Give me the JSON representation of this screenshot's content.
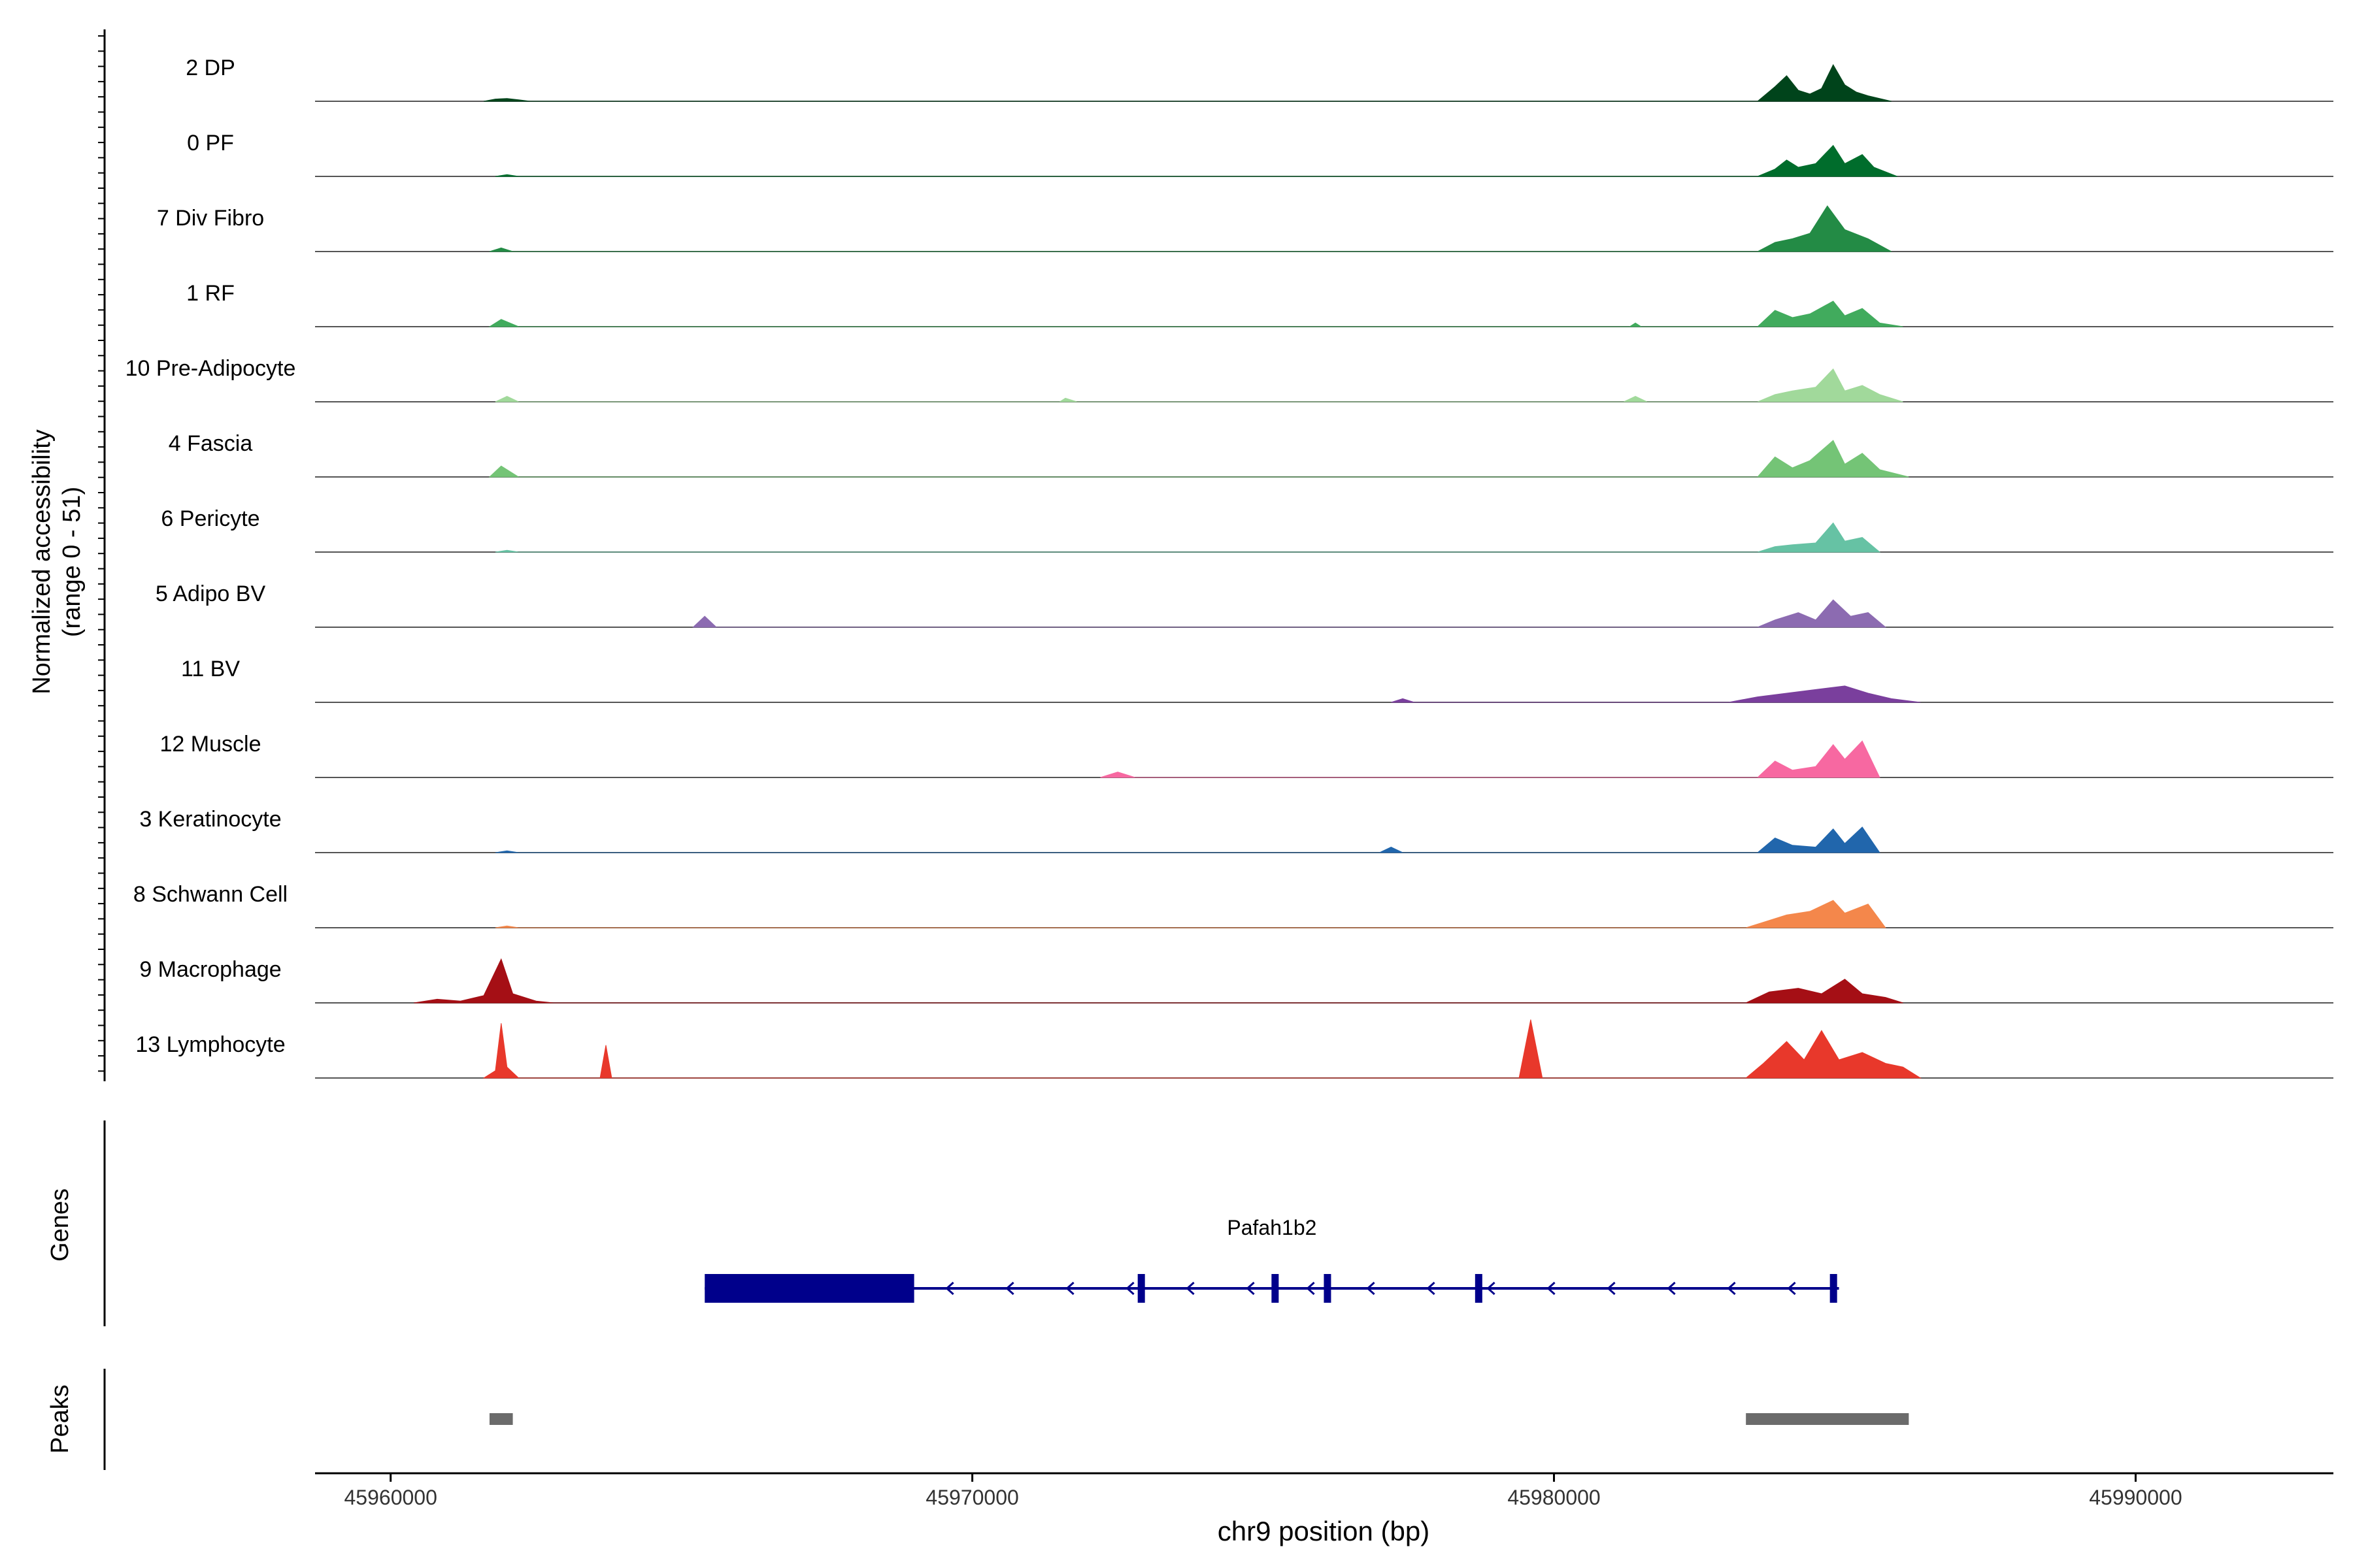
{
  "chart_data": {
    "type": "area",
    "title": "",
    "ylabel_line1": "Normalized accessibility",
    "ylabel_line2": "(range 0 - 51)",
    "xlabel": "chr9 position (bp)",
    "xlim": [
      45958700,
      45993400
    ],
    "ylim": [
      0,
      51
    ],
    "x_ticks": [
      45960000,
      45970000,
      45980000,
      45990000
    ],
    "x_tick_labels": [
      "45960000",
      "45970000",
      "45980000",
      "45990000"
    ],
    "series": [
      {
        "name": "2 DP",
        "color": "#00441b",
        "points": [
          [
            45961600,
            0
          ],
          [
            45961800,
            1.2
          ],
          [
            45962000,
            1.5
          ],
          [
            45962200,
            0.8
          ],
          [
            45962400,
            0
          ],
          [
            45983500,
            0
          ],
          [
            45983800,
            8
          ],
          [
            45984000,
            14
          ],
          [
            45984200,
            6
          ],
          [
            45984400,
            4
          ],
          [
            45984600,
            7
          ],
          [
            45984800,
            20
          ],
          [
            45985000,
            9
          ],
          [
            45985200,
            5
          ],
          [
            45985400,
            3
          ],
          [
            45985800,
            0
          ]
        ]
      },
      {
        "name": "0 PF",
        "color": "#006d2c",
        "points": [
          [
            45961800,
            0
          ],
          [
            45962000,
            1
          ],
          [
            45962200,
            0
          ],
          [
            45983500,
            0
          ],
          [
            45983800,
            4
          ],
          [
            45984000,
            9
          ],
          [
            45984200,
            5
          ],
          [
            45984500,
            7
          ],
          [
            45984800,
            17
          ],
          [
            45985000,
            7
          ],
          [
            45985300,
            12
          ],
          [
            45985500,
            5
          ],
          [
            45985900,
            0
          ]
        ]
      },
      {
        "name": "7 Div Fibro",
        "color": "#238b45",
        "points": [
          [
            45961700,
            0
          ],
          [
            45961900,
            2
          ],
          [
            45962100,
            0
          ],
          [
            45983500,
            0
          ],
          [
            45983800,
            5
          ],
          [
            45984100,
            7
          ],
          [
            45984400,
            10
          ],
          [
            45984700,
            25
          ],
          [
            45985000,
            12
          ],
          [
            45985400,
            7
          ],
          [
            45985800,
            0
          ]
        ]
      },
      {
        "name": "1 RF",
        "color": "#41ab5d",
        "points": [
          [
            45961700,
            0
          ],
          [
            45961900,
            4
          ],
          [
            45962200,
            0
          ],
          [
            45981300,
            0
          ],
          [
            45981400,
            2
          ],
          [
            45981500,
            0
          ],
          [
            45983500,
            0
          ],
          [
            45983800,
            9
          ],
          [
            45984100,
            5
          ],
          [
            45984400,
            7
          ],
          [
            45984800,
            14
          ],
          [
            45985000,
            6
          ],
          [
            45985300,
            10
          ],
          [
            45985600,
            2
          ],
          [
            45986000,
            0
          ]
        ]
      },
      {
        "name": "10 Pre-Adipocyte",
        "color": "#a1d99b",
        "points": [
          [
            45961800,
            0
          ],
          [
            45962000,
            3
          ],
          [
            45962200,
            0
          ],
          [
            45971500,
            0
          ],
          [
            45971600,
            2
          ],
          [
            45971800,
            0
          ],
          [
            45981200,
            0
          ],
          [
            45981400,
            3
          ],
          [
            45981600,
            0
          ],
          [
            45983500,
            0
          ],
          [
            45983800,
            4
          ],
          [
            45984100,
            6
          ],
          [
            45984500,
            8
          ],
          [
            45984800,
            18
          ],
          [
            45985000,
            6
          ],
          [
            45985300,
            9
          ],
          [
            45985600,
            4
          ],
          [
            45986000,
            0
          ]
        ]
      },
      {
        "name": "4 Fascia",
        "color": "#74c476",
        "points": [
          [
            45961700,
            0
          ],
          [
            45961900,
            6
          ],
          [
            45962200,
            0
          ],
          [
            45983500,
            0
          ],
          [
            45983800,
            11
          ],
          [
            45984100,
            5
          ],
          [
            45984400,
            9
          ],
          [
            45984800,
            20
          ],
          [
            45985000,
            7
          ],
          [
            45985300,
            13
          ],
          [
            45985600,
            4
          ],
          [
            45986100,
            0
          ]
        ]
      },
      {
        "name": "6 Pericyte",
        "color": "#66c2a4",
        "points": [
          [
            45961800,
            0
          ],
          [
            45962000,
            1
          ],
          [
            45962200,
            0
          ],
          [
            45983500,
            0
          ],
          [
            45983800,
            3
          ],
          [
            45984100,
            4
          ],
          [
            45984500,
            5
          ],
          [
            45984800,
            16
          ],
          [
            45985000,
            6
          ],
          [
            45985300,
            8
          ],
          [
            45985600,
            0
          ]
        ]
      },
      {
        "name": "5 Adipo BV",
        "color": "#8c6bb1",
        "points": [
          [
            45965200,
            0
          ],
          [
            45965400,
            6
          ],
          [
            45965600,
            0
          ],
          [
            45983500,
            0
          ],
          [
            45983800,
            4
          ],
          [
            45984200,
            8
          ],
          [
            45984500,
            4
          ],
          [
            45984800,
            15
          ],
          [
            45985100,
            6
          ],
          [
            45985400,
            8
          ],
          [
            45985700,
            0
          ]
        ]
      },
      {
        "name": "11 BV",
        "color": "#7a3f9d",
        "points": [
          [
            45977200,
            0
          ],
          [
            45977400,
            2
          ],
          [
            45977600,
            0
          ],
          [
            45983000,
            0
          ],
          [
            45983500,
            3
          ],
          [
            45984000,
            5
          ],
          [
            45984500,
            7
          ],
          [
            45985000,
            9
          ],
          [
            45985400,
            5
          ],
          [
            45985800,
            2
          ],
          [
            45986300,
            0
          ]
        ]
      },
      {
        "name": "12 Muscle",
        "color": "#f768a1",
        "points": [
          [
            45972200,
            0
          ],
          [
            45972500,
            3
          ],
          [
            45972800,
            0
          ],
          [
            45983500,
            0
          ],
          [
            45983800,
            9
          ],
          [
            45984100,
            4
          ],
          [
            45984500,
            6
          ],
          [
            45984800,
            18
          ],
          [
            45985000,
            10
          ],
          [
            45985300,
            20
          ],
          [
            45985600,
            0
          ]
        ]
      },
      {
        "name": "3 Keratinocyte",
        "color": "#2166ac",
        "points": [
          [
            45961800,
            0
          ],
          [
            45962000,
            1
          ],
          [
            45962200,
            0
          ],
          [
            45977000,
            0
          ],
          [
            45977200,
            3
          ],
          [
            45977400,
            0
          ],
          [
            45983500,
            0
          ],
          [
            45983800,
            8
          ],
          [
            45984100,
            4
          ],
          [
            45984500,
            3
          ],
          [
            45984800,
            13
          ],
          [
            45985000,
            5
          ],
          [
            45985300,
            14
          ],
          [
            45985600,
            0
          ]
        ]
      },
      {
        "name": "8 Schwann Cell",
        "color": "#f4874b",
        "points": [
          [
            45961800,
            0
          ],
          [
            45962000,
            1
          ],
          [
            45962200,
            0
          ],
          [
            45983300,
            0
          ],
          [
            45983600,
            3
          ],
          [
            45984000,
            7
          ],
          [
            45984400,
            9
          ],
          [
            45984800,
            15
          ],
          [
            45985000,
            8
          ],
          [
            45985400,
            13
          ],
          [
            45985700,
            0
          ]
        ]
      },
      {
        "name": "9 Macrophage",
        "color": "#a50f15",
        "points": [
          [
            45960400,
            0
          ],
          [
            45960800,
            2
          ],
          [
            45961200,
            1
          ],
          [
            45961600,
            4
          ],
          [
            45961900,
            24
          ],
          [
            45962100,
            5
          ],
          [
            45962500,
            1
          ],
          [
            45962800,
            0
          ],
          [
            45983300,
            0
          ],
          [
            45983700,
            6
          ],
          [
            45984200,
            8
          ],
          [
            45984600,
            5
          ],
          [
            45985000,
            13
          ],
          [
            45985300,
            5
          ],
          [
            45985700,
            3
          ],
          [
            45986000,
            0
          ]
        ]
      },
      {
        "name": "13 Lymphocyte",
        "color": "#e8382b",
        "points": [
          [
            45961600,
            0
          ],
          [
            45961800,
            4
          ],
          [
            45961900,
            30
          ],
          [
            45962000,
            6
          ],
          [
            45962200,
            0
          ],
          [
            45963600,
            0
          ],
          [
            45963700,
            18
          ],
          [
            45963800,
            0
          ],
          [
            45979400,
            0
          ],
          [
            45979600,
            32
          ],
          [
            45979800,
            0
          ],
          [
            45983300,
            0
          ],
          [
            45983600,
            8
          ],
          [
            45984000,
            20
          ],
          [
            45984300,
            10
          ],
          [
            45984600,
            26
          ],
          [
            45984900,
            10
          ],
          [
            45985300,
            14
          ],
          [
            45985700,
            8
          ],
          [
            45986000,
            6
          ],
          [
            45986300,
            0
          ]
        ]
      }
    ],
    "genes_track": {
      "label": "Genes",
      "gene_name": "Pafah1b2",
      "range": [
        45965400,
        45984900
      ],
      "thick_range": [
        45965400,
        45969000
      ],
      "exons": [
        45972900,
        45975200,
        45976100,
        45978700,
        45984800
      ],
      "color": "#00008b"
    },
    "peaks_track": {
      "label": "Peaks",
      "peaks": [
        [
          45961700,
          45962100
        ],
        [
          45983300,
          45986100
        ]
      ],
      "color": "#6b6b6b"
    }
  }
}
